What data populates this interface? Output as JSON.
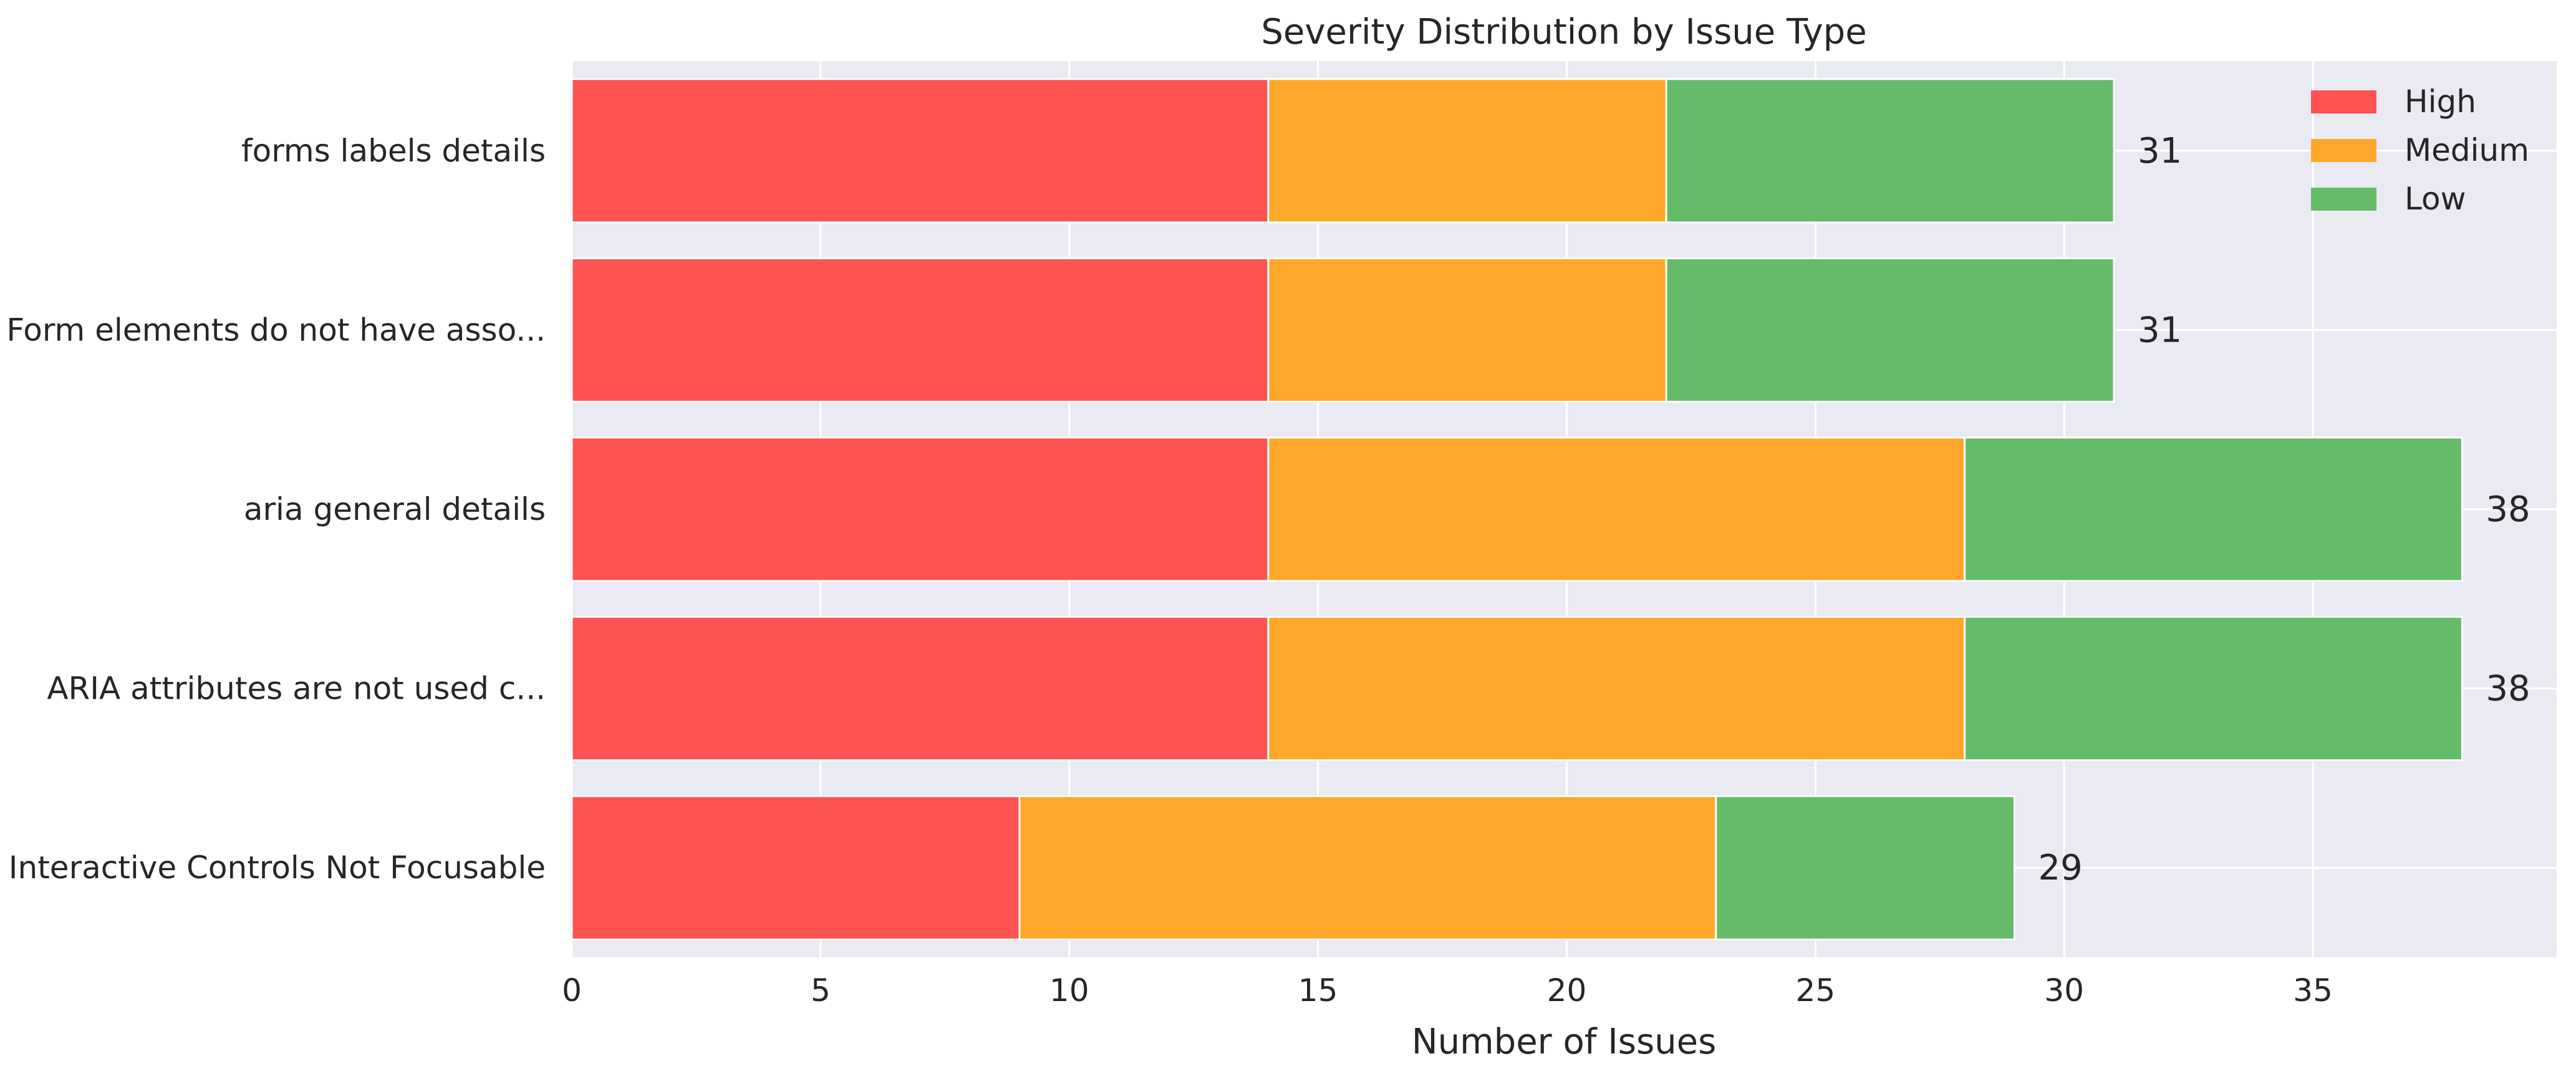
{
  "chart_data": {
    "type": "bar",
    "orientation": "horizontal",
    "stacked": true,
    "title": "Severity Distribution by Issue Type",
    "xlabel": "Number of Issues",
    "ylabel": "",
    "xlim": [
      0,
      39.9
    ],
    "xticks": [
      0,
      5,
      10,
      15,
      20,
      25,
      30,
      35
    ],
    "grid": true,
    "legend_position": "top-right",
    "categories": [
      "forms labels details",
      "Form elements do not have asso...",
      "aria general details",
      "ARIA attributes are not used c...",
      "Interactive Controls Not Focusable"
    ],
    "series": [
      {
        "name": "High",
        "color": "#ff5252",
        "values": [
          14,
          14,
          14,
          14,
          9
        ]
      },
      {
        "name": "Medium",
        "color": "#ffa72a",
        "values": [
          8,
          8,
          14,
          14,
          14
        ]
      },
      {
        "name": "Low",
        "color": "#66bb6a",
        "values": [
          9,
          9,
          10,
          10,
          6
        ]
      }
    ],
    "totals": [
      31,
      31,
      38,
      38,
      29
    ],
    "background": "#eaeaf2",
    "gridcolor": "#ffffff"
  }
}
